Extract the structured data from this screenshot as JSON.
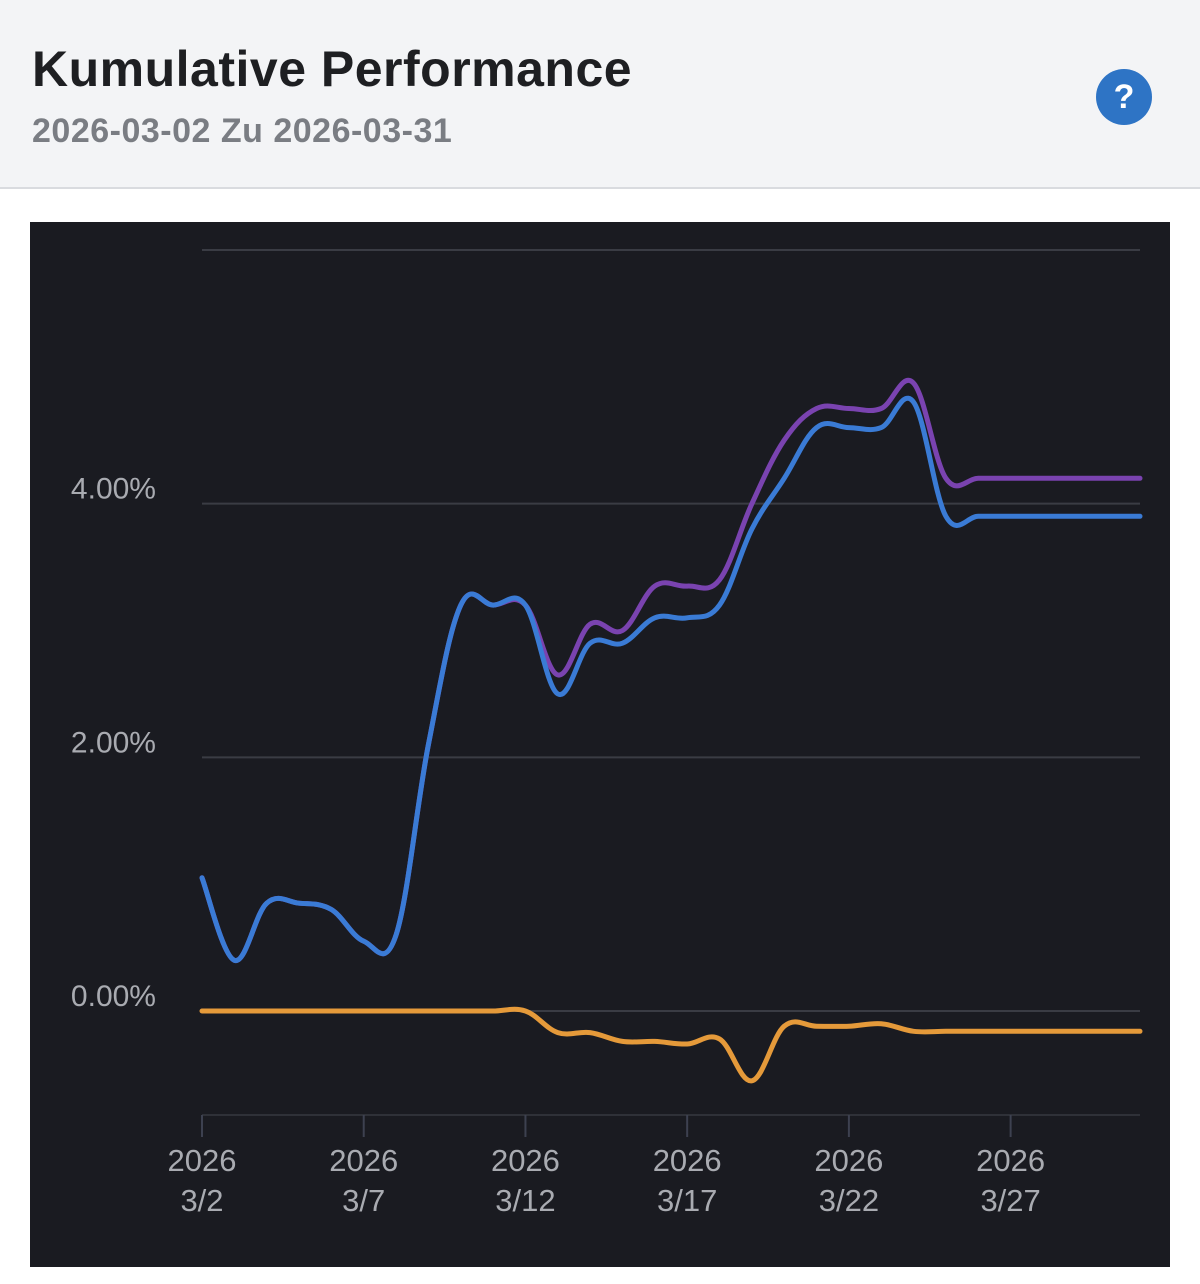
{
  "header": {
    "title": "Kumulative Performance",
    "subtitle": "2026-03-02 Zu 2026-03-31",
    "help_icon": "?"
  },
  "colors": {
    "panel_bg": "#1a1b21",
    "grid": "#3a3c44",
    "tick_text": "#a9abb1",
    "series_blue": "#3a7bd5",
    "series_purple": "#7a43b0",
    "series_orange": "#e59a3a",
    "accent": "#2e74c5"
  },
  "chart_data": {
    "type": "line",
    "title": "Kumulative Performance",
    "subtitle": "2026-03-02 Zu 2026-03-31",
    "x": [
      "2026-03-02",
      "2026-03-03",
      "2026-03-04",
      "2026-03-05",
      "2026-03-06",
      "2026-03-07",
      "2026-03-08",
      "2026-03-09",
      "2026-03-10",
      "2026-03-11",
      "2026-03-12",
      "2026-03-13",
      "2026-03-14",
      "2026-03-15",
      "2026-03-16",
      "2026-03-17",
      "2026-03-18",
      "2026-03-19",
      "2026-03-20",
      "2026-03-21",
      "2026-03-22",
      "2026-03-23",
      "2026-03-24",
      "2026-03-25",
      "2026-03-26",
      "2026-03-27",
      "2026-03-28",
      "2026-03-29",
      "2026-03-30",
      "2026-03-31"
    ],
    "x_ticks": [
      {
        "date": "2026-03-02",
        "line1": "2026",
        "line2": "3/2"
      },
      {
        "date": "2026-03-07",
        "line1": "2026",
        "line2": "3/7"
      },
      {
        "date": "2026-03-12",
        "line1": "2026",
        "line2": "3/12"
      },
      {
        "date": "2026-03-17",
        "line1": "2026",
        "line2": "3/17"
      },
      {
        "date": "2026-03-22",
        "line1": "2026",
        "line2": "3/22"
      },
      {
        "date": "2026-03-27",
        "line1": "2026",
        "line2": "3/27"
      }
    ],
    "y_ticks": [
      {
        "value": 0,
        "label": "0.00%"
      },
      {
        "value": 2,
        "label": "2.00%"
      },
      {
        "value": 4,
        "label": "4.00%"
      }
    ],
    "ylim": [
      -0.82,
      6.0
    ],
    "grid": true,
    "legend": "none",
    "series": [
      {
        "color": "#3a7bd5",
        "values": [
          1.05,
          0.4,
          0.85,
          0.85,
          0.8,
          0.55,
          0.6,
          2.1,
          3.2,
          3.2,
          3.2,
          2.5,
          2.9,
          2.9,
          3.1,
          3.1,
          3.2,
          3.8,
          4.2,
          4.6,
          4.6,
          4.6,
          4.8,
          3.9,
          3.9,
          3.9,
          3.9,
          3.9,
          3.9,
          3.9
        ]
      },
      {
        "color": "#7a43b0",
        "values": [
          1.05,
          0.4,
          0.85,
          0.85,
          0.8,
          0.55,
          0.6,
          2.1,
          3.2,
          3.2,
          3.2,
          2.65,
          3.05,
          3.0,
          3.35,
          3.35,
          3.4,
          4.0,
          4.5,
          4.75,
          4.75,
          4.75,
          4.95,
          4.2,
          4.2,
          4.2,
          4.2,
          4.2,
          4.2,
          4.2
        ]
      },
      {
        "color": "#e59a3a",
        "values": [
          0,
          0,
          0,
          0,
          0,
          0,
          0,
          0,
          0,
          0,
          0,
          -0.17,
          -0.17,
          -0.24,
          -0.24,
          -0.26,
          -0.22,
          -0.55,
          -0.12,
          -0.12,
          -0.12,
          -0.1,
          -0.16,
          -0.16,
          -0.16,
          -0.16,
          -0.16,
          -0.16,
          -0.16,
          -0.16
        ]
      }
    ]
  }
}
